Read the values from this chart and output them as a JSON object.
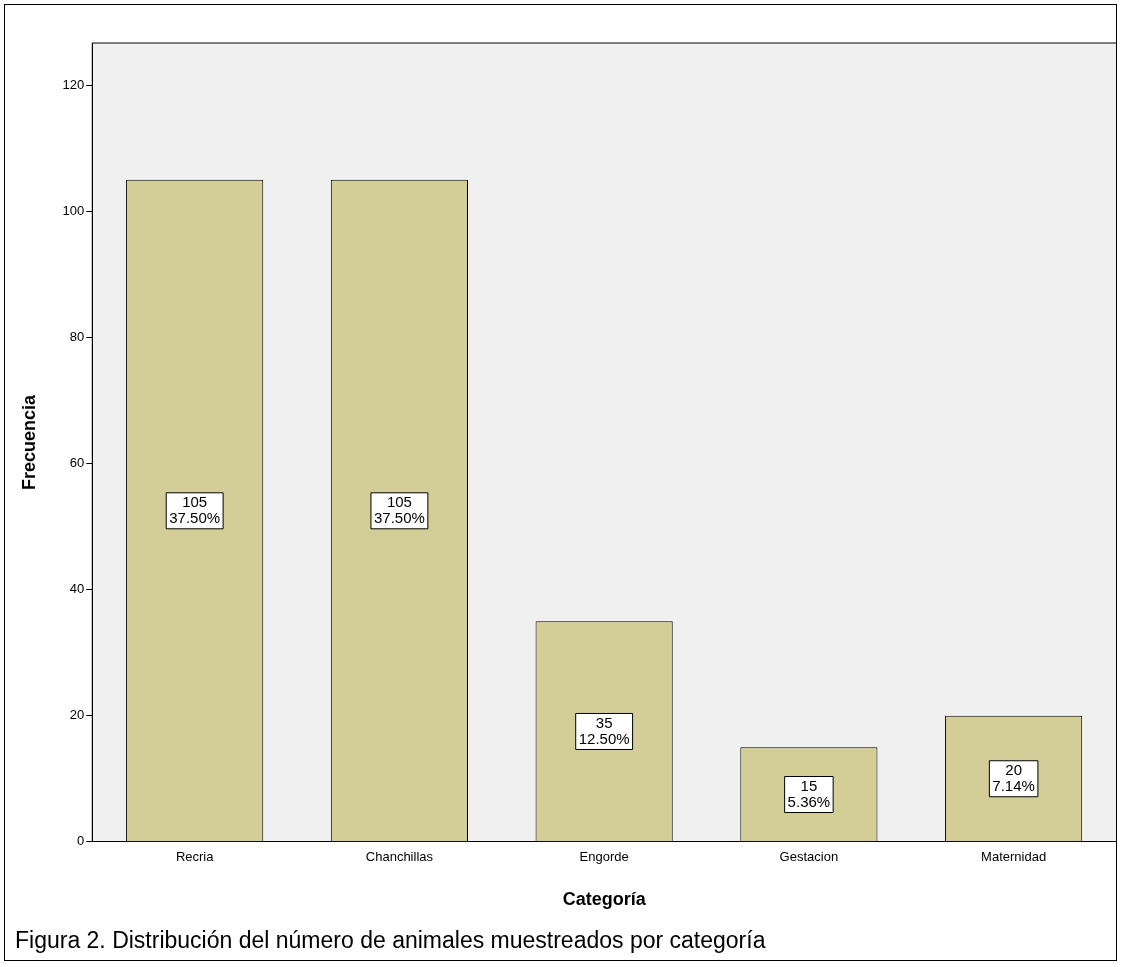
{
  "chart_data": {
    "type": "bar",
    "xlabel": "Categoría",
    "ylabel": "Frecuencia",
    "categories": [
      "Recria",
      "Chanchillas",
      "Engorde",
      "Gestacion",
      "Maternidad"
    ],
    "values": [
      105,
      105,
      35,
      15,
      20
    ],
    "value_labels": [
      "105\n37.50%",
      "105\n37.50%",
      "35\n12.50%",
      "15\n5.36%",
      "20\n7.14%"
    ],
    "color": "#d3ce97",
    "ylim": [
      0,
      126.7
    ],
    "yticks": [
      0,
      20,
      40,
      60,
      80,
      100,
      120
    ],
    "grid": false,
    "legend": false,
    "annotations": [
      "Figura 2. Distribución del número de animales muestreados por categoría"
    ]
  }
}
